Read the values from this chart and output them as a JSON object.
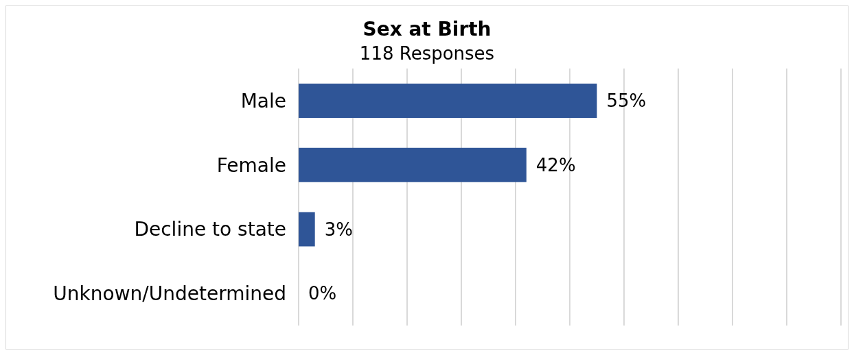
{
  "chart_data": {
    "type": "bar",
    "orientation": "horizontal",
    "title": "Sex at Birth",
    "subtitle": "118 Responses",
    "categories": [
      "Male",
      "Female",
      "Decline to state",
      "Unknown/Undetermined"
    ],
    "values": [
      55,
      42,
      3,
      0
    ],
    "value_labels": [
      "55%",
      "42%",
      "3%",
      "0%"
    ],
    "color": "#2f5597",
    "xlim": [
      0,
      100
    ],
    "xticks": [
      {
        "value": 0,
        "label": null
      },
      {
        "value": 10,
        "label": null
      },
      {
        "value": 20,
        "label": null
      },
      {
        "value": 30,
        "label": null
      },
      {
        "value": 40,
        "label": null
      },
      {
        "value": 50,
        "label": null
      },
      {
        "value": 60,
        "label": null
      },
      {
        "value": 70,
        "label": null
      },
      {
        "value": 80,
        "label": null
      },
      {
        "value": 90,
        "label": null
      },
      {
        "value": 100,
        "label": null
      }
    ],
    "grid": "x",
    "tick_labels": "y",
    "legend": false
  }
}
